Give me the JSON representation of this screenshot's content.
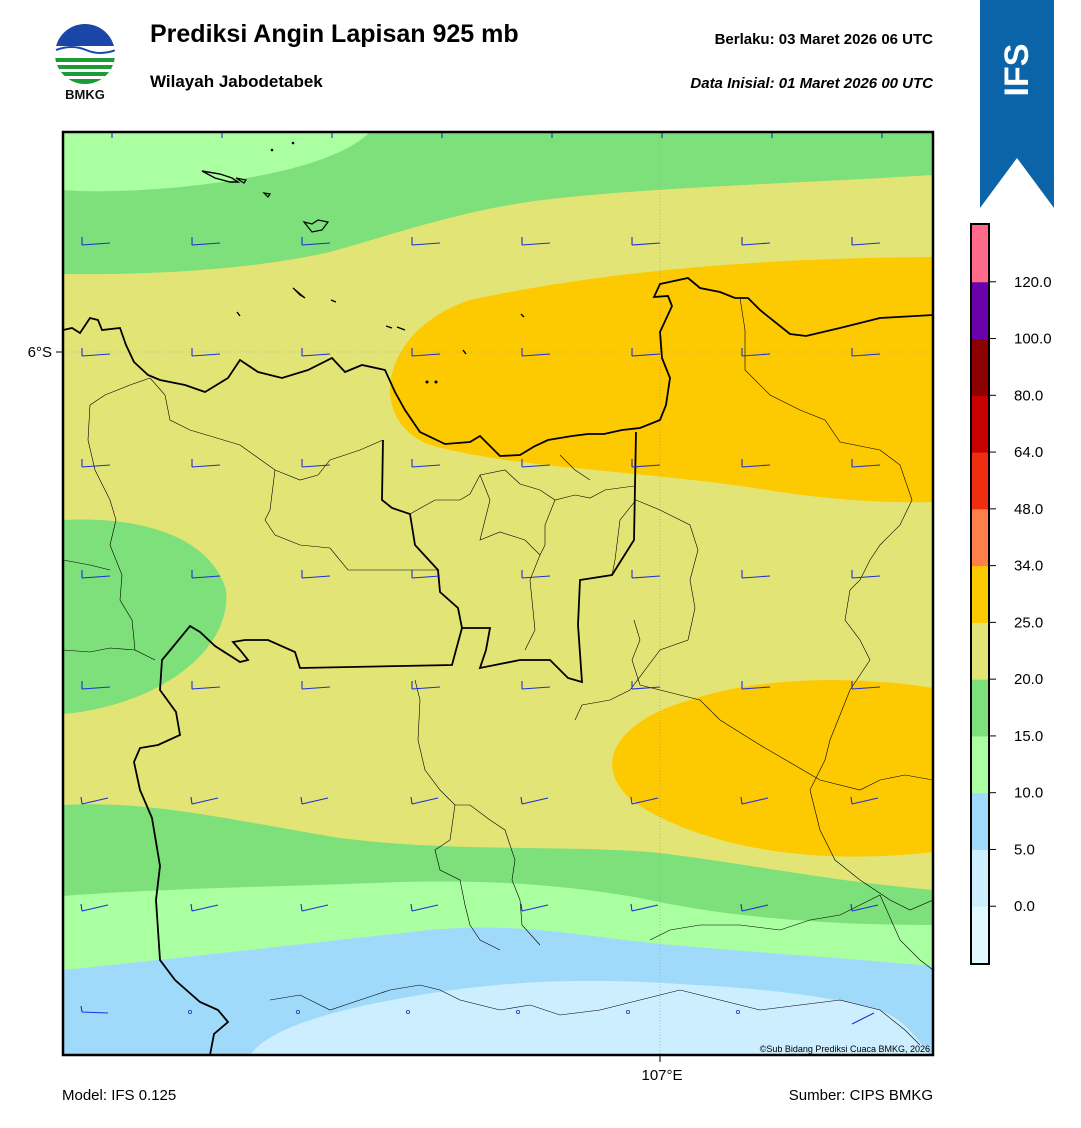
{
  "header": {
    "title": "Prediksi Angin Lapisan 925 mb",
    "subtitle": "Wilayah Jabodetabek",
    "valid_label": "Berlaku:  03 Maret 2026 06 UTC",
    "init_label": "Data Inisial:  01 Maret 2026 00 UTC",
    "logo_text": "BMKG"
  },
  "banner": {
    "text": "IFS",
    "color": "#0b64a8"
  },
  "map": {
    "lat_tick": "6°S",
    "lon_tick": "107°E",
    "copyright": "©Sub Bidang Prediksi Cuaca BMKG, 2026",
    "barb_color": "#1e2fd6"
  },
  "colorbar": {
    "ticks": [
      "120.0",
      "100.0",
      "80.0",
      "64.0",
      "48.0",
      "34.0",
      "25.0",
      "20.0",
      "15.0",
      "10.0",
      "5.0",
      "0.0"
    ],
    "colors": [
      "#e0f8ff",
      "#cceefe",
      "#a0dafa",
      "#aaffa0",
      "#7de07a",
      "#e3e476",
      "#fdc901",
      "#ff7f4a",
      "#ef2d10",
      "#c80000",
      "#8c0000",
      "#6a00aa",
      "#ff6a8a"
    ]
  },
  "footer": {
    "model": "Model: IFS 0.125",
    "source": "Sumber: CIPS BMKG"
  }
}
